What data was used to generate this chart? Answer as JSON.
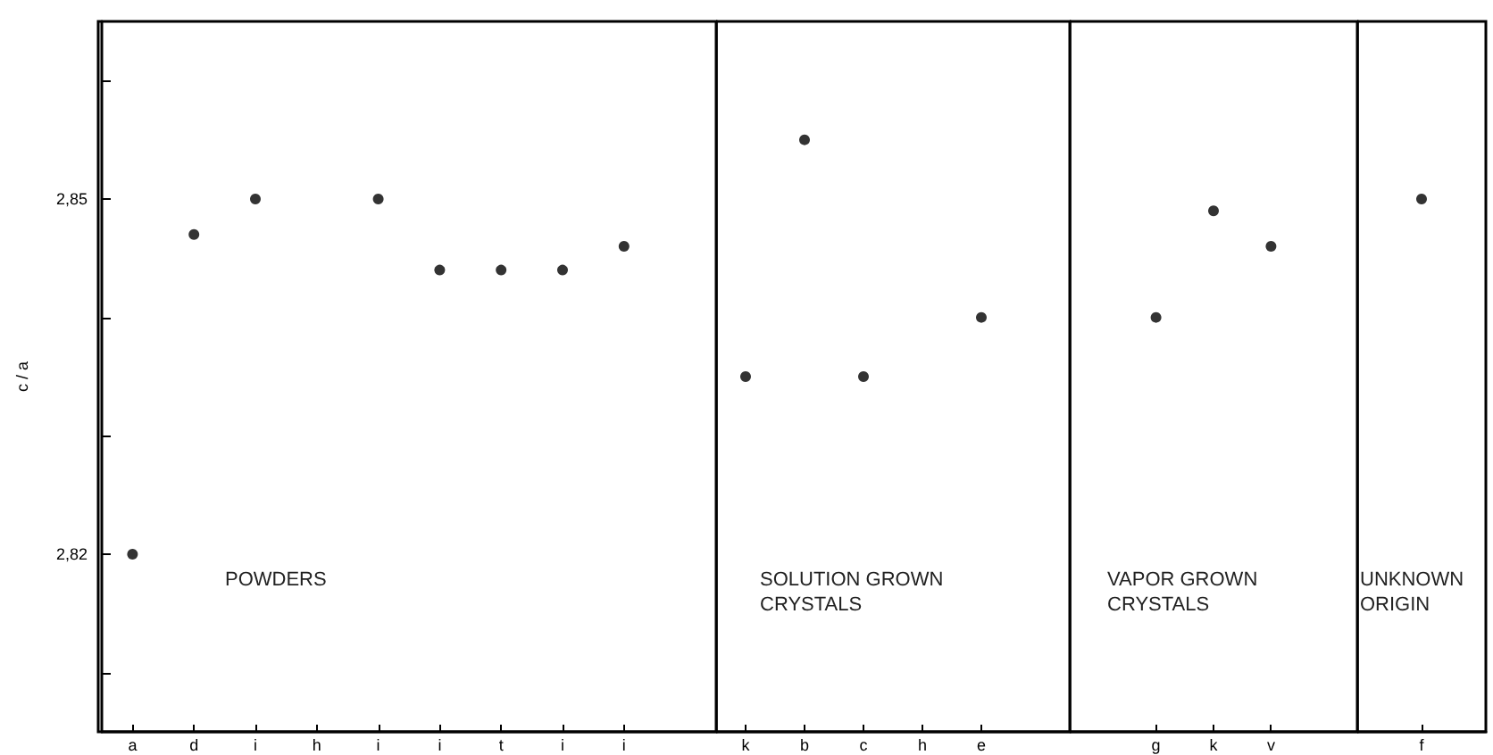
{
  "chart_data": [
    {
      "type": "scatter",
      "ylabel": "c / a",
      "categories": [
        "a",
        "d",
        "i",
        "h",
        "i",
        "i",
        "t",
        "i",
        "i",
        null
      ],
      "values": [
        2.82,
        2.847,
        2.85,
        null,
        2.85,
        2.844,
        2.844,
        2.844,
        2.846,
        null
      ],
      "color": "#000000",
      "marker": "circle",
      "grid": false,
      "ylim": [
        2.805,
        2.865
      ],
      "yticks": [
        {
          "value": 2.81,
          "label": null
        },
        {
          "value": 2.82,
          "label": "2,82"
        },
        {
          "value": 2.83,
          "label": null
        },
        {
          "value": 2.84,
          "label": null
        },
        {
          "value": 2.85,
          "label": "2,85"
        },
        {
          "value": 2.86,
          "label": null
        }
      ],
      "annotations": [
        "POWDERS"
      ]
    },
    {
      "type": "scatter",
      "categories": [
        "k",
        "b",
        "c",
        "h",
        "e",
        null
      ],
      "values": [
        2.835,
        2.855,
        2.835,
        null,
        2.84,
        null
      ],
      "color": "#000000",
      "marker": "circle",
      "grid": false,
      "ylim": [
        2.805,
        2.865
      ],
      "tick_labels": "x",
      "annotations": [
        "SOLUTION GROWN CRYSTALS"
      ]
    },
    {
      "type": "scatter",
      "categories": [
        null,
        "g",
        "k",
        "v",
        null
      ],
      "values": [
        null,
        2.84,
        2.849,
        2.846,
        null
      ],
      "color": "#000000",
      "marker": "circle",
      "grid": false,
      "ylim": [
        2.805,
        2.865
      ],
      "tick_labels": "x",
      "annotations": [
        "VAPOR GROWN CRYSTALS"
      ]
    },
    {
      "type": "scatter",
      "categories": [
        "f"
      ],
      "values": [
        2.85
      ],
      "color": "#000000",
      "marker": "circle",
      "grid": false,
      "ylim": [
        2.805,
        2.865
      ],
      "tick_labels": "x",
      "annotations": [
        "UNKNOWN ORIGIN"
      ]
    }
  ]
}
